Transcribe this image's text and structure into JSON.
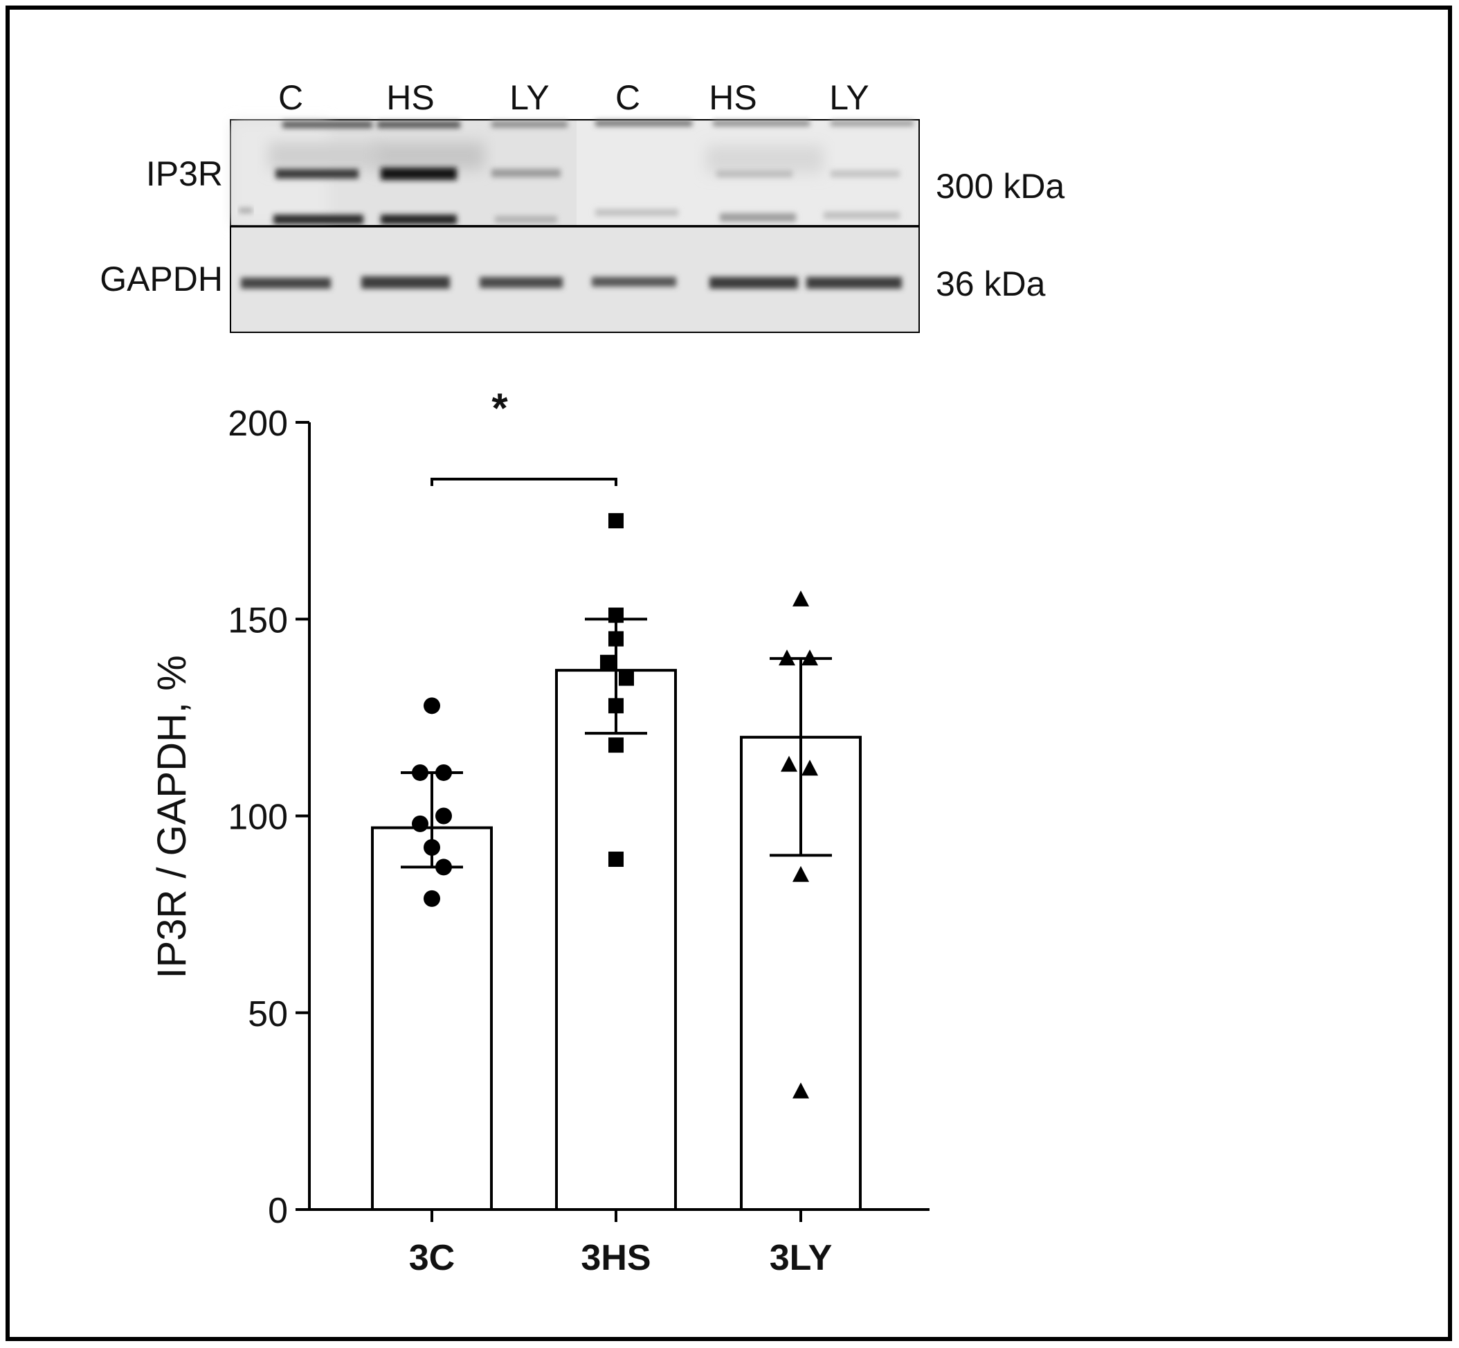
{
  "blot": {
    "lane_labels": [
      "C",
      "HS",
      "LY",
      "C",
      "HS",
      "LY"
    ],
    "row_labels": [
      "IP3R",
      "GAPDH"
    ],
    "size_labels": [
      "300 kDa",
      "36 kDa"
    ]
  },
  "chart_data": {
    "type": "bar",
    "categories": [
      "3C",
      "3HS",
      "3LY"
    ],
    "values": [
      97,
      137,
      120
    ],
    "error": [
      {
        "low": 87,
        "high": 111
      },
      {
        "low": 121,
        "high": 150
      },
      {
        "low": 90,
        "high": 140
      }
    ],
    "points": [
      {
        "category": "3C",
        "marker": "circle",
        "y": [
          128,
          111,
          111,
          100,
          98,
          92,
          87,
          79
        ]
      },
      {
        "category": "3HS",
        "marker": "square",
        "y": [
          175,
          151,
          145,
          139,
          135,
          128,
          118,
          89
        ]
      },
      {
        "category": "3LY",
        "marker": "triangle",
        "y": [
          155,
          140,
          140,
          113,
          112,
          85,
          30
        ]
      }
    ],
    "ylabel": "IP3R / GAPDH, %",
    "xlabel": "",
    "ylim": [
      0,
      200
    ],
    "yticks": [
      0,
      50,
      100,
      150,
      200
    ],
    "significance": [
      {
        "from": "3C",
        "to": "3HS",
        "label": "*"
      }
    ]
  }
}
